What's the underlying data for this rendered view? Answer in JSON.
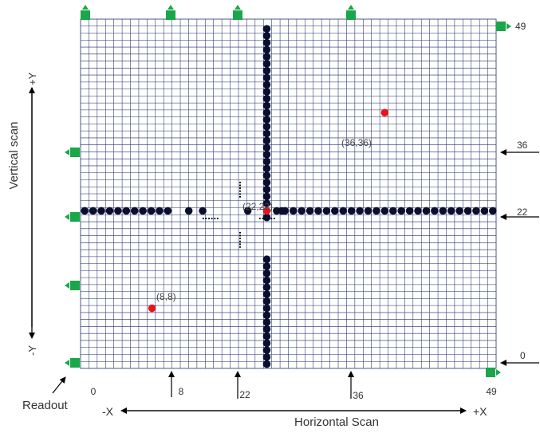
{
  "labels": {
    "vertical_scan": "Vertical scan",
    "horizontal_scan": "Horizontal Scan",
    "plus_y": "+Y",
    "minus_y": "-Y",
    "minus_x": "-X",
    "plus_x": "+X",
    "readout": "Readout",
    "ellipsis": "......"
  },
  "grid": {
    "size": 50,
    "line_color": "#1f2f6e"
  },
  "x_ticks": [
    "0",
    "8",
    "22",
    "36",
    "49"
  ],
  "y_ticks": [
    "0",
    "22",
    "36",
    "49"
  ],
  "selected_points": [
    "(8,8)",
    "(22,22)",
    "(36,36)"
  ],
  "colors": {
    "readout_green": "#1aa64a",
    "pixel_black": "#0a0f2e",
    "selected_red": "#e8141c",
    "arrow": "#000000",
    "text": "#333333"
  },
  "icons": {
    "readout_marker": "green-readout-block-icon",
    "pixel": "black-dot-icon",
    "selected_pixel": "red-dot-icon"
  }
}
